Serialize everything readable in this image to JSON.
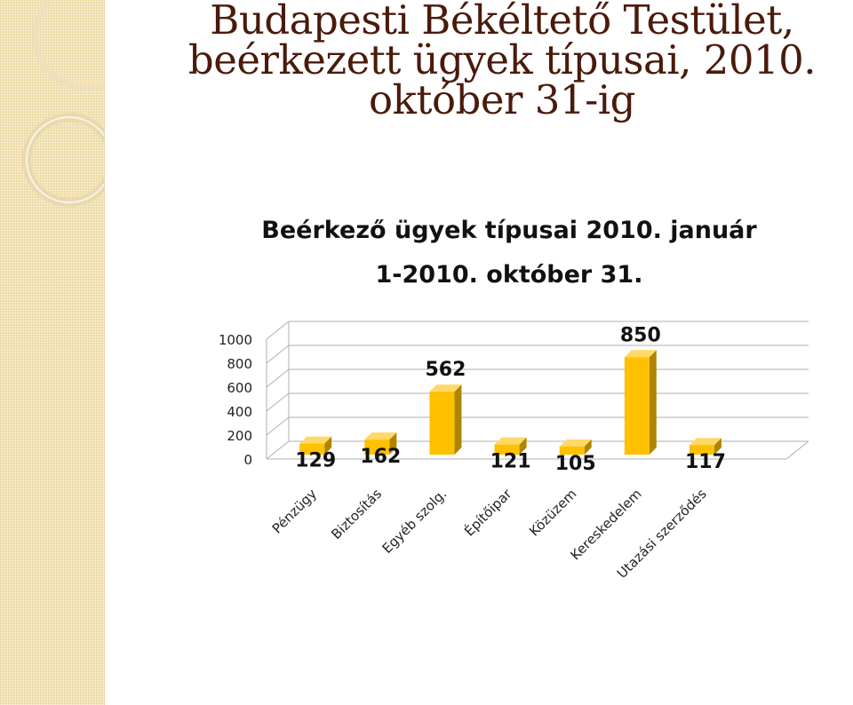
{
  "slide": {
    "title_lines": [
      "Budapesti Békéltető Testület,",
      "beérkezett ügyek típusai, 2010.",
      "október 31-ig"
    ]
  },
  "colors": {
    "title": "#4a1a0c",
    "bar_front": "#ffc000",
    "bar_side": "#b08400",
    "bar_top": "#ffd966",
    "grid": "#b0b0b0",
    "strip": "#f4e3b4"
  },
  "chart_data": {
    "type": "bar",
    "title_lines": [
      "Beérkező ügyek típusai 2010. január",
      "1-2010. október 31."
    ],
    "categories": [
      "Pénzügy",
      "Biztosítás",
      "Egyéb szolg.",
      "Építőipar",
      "Közüzem",
      "Kereskedelem",
      "Utazási szerződés"
    ],
    "values": [
      129,
      162,
      562,
      121,
      105,
      850,
      117
    ],
    "data_labels": [
      "129",
      "162",
      "562",
      "121",
      "105",
      "850",
      "117"
    ],
    "ylim": [
      0,
      1000
    ],
    "y_ticks": [
      "0",
      "200",
      "400",
      "600",
      "800",
      "1000"
    ],
    "y_tick_values": [
      0,
      200,
      400,
      600,
      800,
      1000
    ],
    "grid": true,
    "three_d": true
  }
}
